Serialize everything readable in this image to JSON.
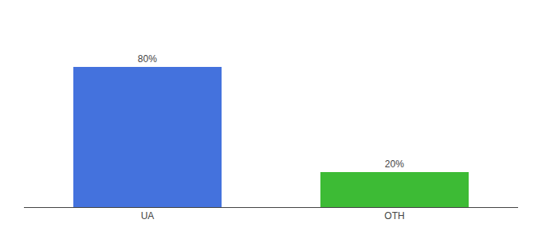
{
  "chart_data": {
    "type": "bar",
    "categories": [
      "UA",
      "OTH"
    ],
    "values": [
      80,
      20
    ],
    "value_labels": [
      "80%",
      "20%"
    ],
    "colors": [
      "#4472dd",
      "#3dbb35"
    ],
    "ylim": [
      0,
      100
    ],
    "grid": false,
    "data_labels": true,
    "tick_labels": "x"
  }
}
